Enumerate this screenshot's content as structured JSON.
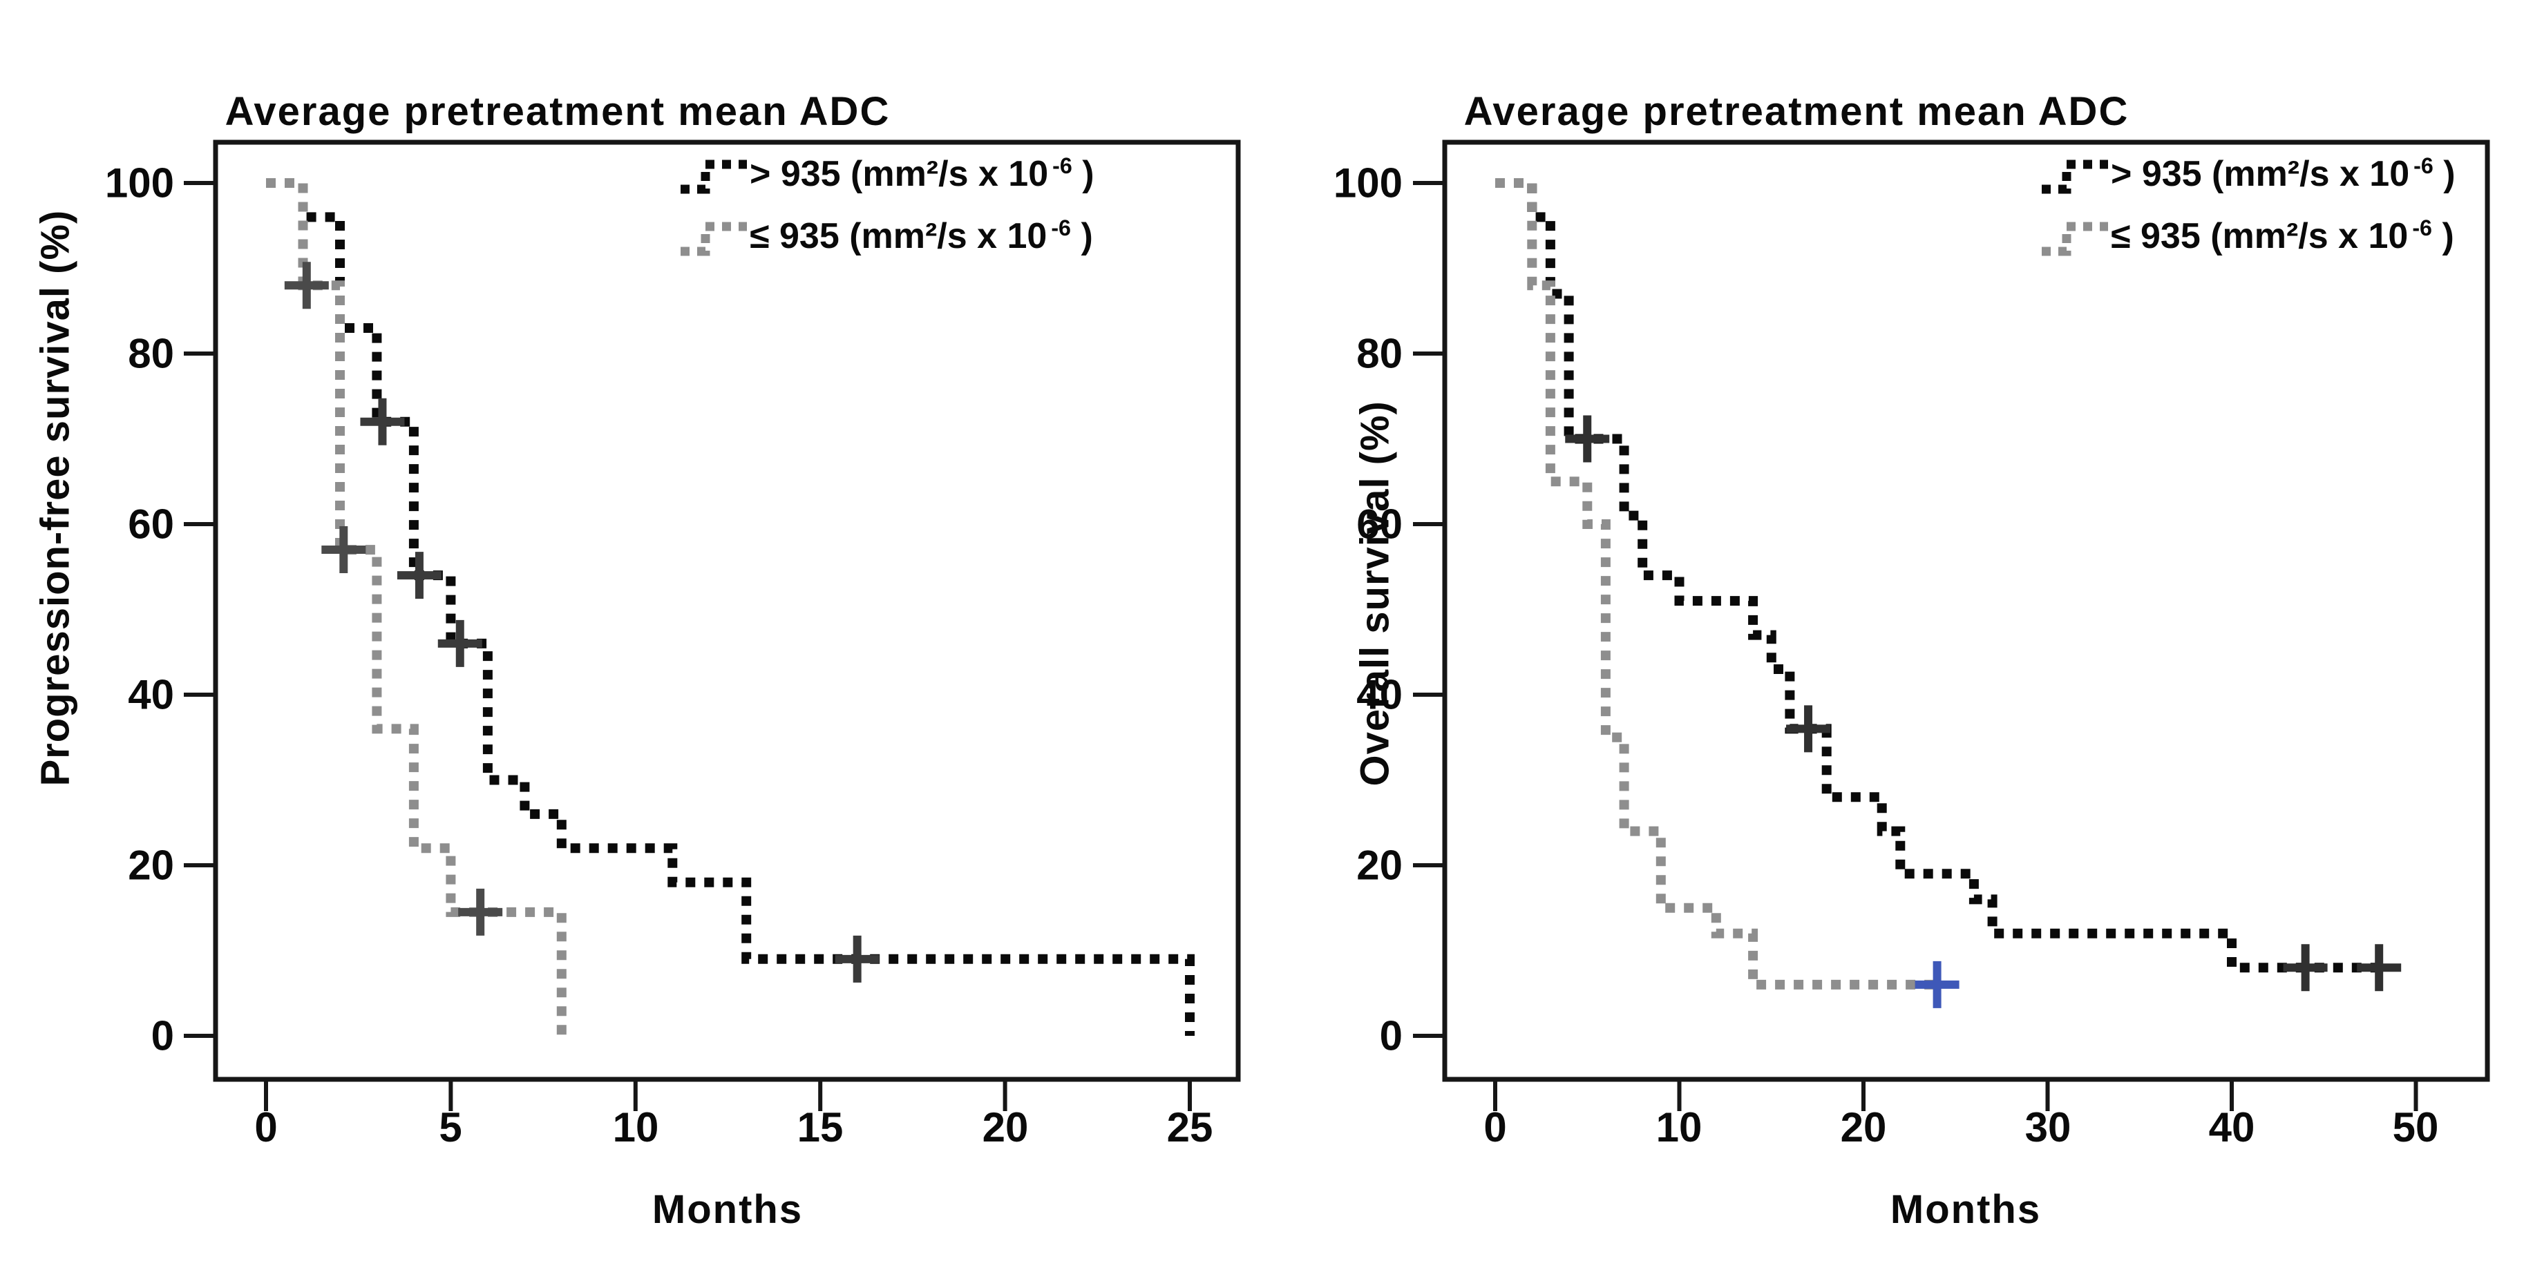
{
  "figure": {
    "background": "#ffffff",
    "frame_color": "#161616",
    "series_colors": {
      "gt935": "#0a0a0a",
      "le935": "#8e8e8e"
    },
    "special_censor_color": "#3e58b8"
  },
  "chart_data": [
    {
      "type": "line",
      "subtype": "kaplan_meier_step",
      "title": "Average pretreatment mean ADC",
      "xlabel": "Months",
      "ylabel": "Progression-free survival (%)",
      "xticks": [
        0,
        5,
        10,
        15,
        20,
        25
      ],
      "yticks": [
        0,
        20,
        40,
        60,
        80,
        100
      ],
      "xlim": [
        0,
        26.5
      ],
      "ylim": [
        0,
        100
      ],
      "grid": false,
      "legend_position": "top-right-inside",
      "legend": [
        {
          "prefix": "> 935 (mm²/s x 10",
          "sup": "-6",
          "suffix": " )"
        },
        {
          "prefix": "≤ 935 (mm²/s x 10",
          "sup": "-6",
          "suffix": " )"
        }
      ],
      "series": [
        {
          "name": "ADC > 935",
          "color": "#0a0a0a",
          "start": [
            0,
            100
          ],
          "steps": [
            [
              1,
              96
            ],
            [
              2,
              83
            ],
            [
              3,
              72
            ],
            [
              4,
              54
            ],
            [
              5,
              46
            ],
            [
              6,
              30
            ],
            [
              7,
              26
            ],
            [
              8,
              22
            ],
            [
              11,
              18
            ],
            [
              13,
              9
            ],
            [
              25,
              0
            ]
          ],
          "end": 25,
          "censor_color": "#3a3a3a",
          "censors": [
            {
              "x": 3.15,
              "y": 72
            },
            {
              "x": 4.15,
              "y": 54
            },
            {
              "x": 5.25,
              "y": 46
            },
            {
              "x": 16,
              "y": 9
            }
          ]
        },
        {
          "name": "ADC ≤ 935",
          "color": "#8e8e8e",
          "start": [
            0,
            100
          ],
          "steps": [
            [
              1,
              88
            ],
            [
              2,
              57
            ],
            [
              3,
              36
            ],
            [
              4,
              22
            ],
            [
              5,
              14.5
            ],
            [
              8,
              0
            ]
          ],
          "end": 8,
          "censor_color": "#4a4a4a",
          "censors": [
            {
              "x": 1.1,
              "y": 88
            },
            {
              "x": 2.1,
              "y": 57
            },
            {
              "x": 5.8,
              "y": 14.5
            }
          ]
        }
      ]
    },
    {
      "type": "line",
      "subtype": "kaplan_meier_step",
      "title": "Average pretreatment mean ADC",
      "xlabel": "Months",
      "ylabel": "Overall survival (%)",
      "xticks": [
        0,
        10,
        20,
        30,
        40,
        50
      ],
      "yticks": [
        0,
        20,
        40,
        60,
        80,
        100
      ],
      "xlim": [
        0,
        53
      ],
      "ylim": [
        0,
        100
      ],
      "grid": false,
      "legend_position": "top-right-inside",
      "legend": [
        {
          "prefix": "> 935 (mm²/s x 10",
          "sup": "-6",
          "suffix": " )"
        },
        {
          "prefix": "≤ 935 (mm²/s x 10",
          "sup": "-6",
          "suffix": " )"
        }
      ],
      "series": [
        {
          "name": "ADC > 935",
          "color": "#0a0a0a",
          "start": [
            0,
            100
          ],
          "steps": [
            [
              2,
              96
            ],
            [
              3,
              87
            ],
            [
              4,
              70
            ],
            [
              7,
              61
            ],
            [
              8,
              54
            ],
            [
              10,
              51
            ],
            [
              14,
              47
            ],
            [
              15,
              43
            ],
            [
              16,
              36
            ],
            [
              18,
              28
            ],
            [
              21,
              24
            ],
            [
              22,
              19
            ],
            [
              26,
              16
            ],
            [
              27,
              12
            ],
            [
              40,
              8
            ]
          ],
          "end": 48,
          "censor_color": "#303030",
          "censors": [
            {
              "x": 5,
              "y": 70
            },
            {
              "x": 17,
              "y": 36
            },
            {
              "x": 44,
              "y": 8
            },
            {
              "x": 48,
              "y": 8
            }
          ]
        },
        {
          "name": "ADC ≤ 935",
          "color": "#8e8e8e",
          "start": [
            0,
            100
          ],
          "steps": [
            [
              2,
              88
            ],
            [
              3,
              65
            ],
            [
              5,
              60
            ],
            [
              6,
              35
            ],
            [
              7,
              24
            ],
            [
              9,
              15
            ],
            [
              12,
              12
            ],
            [
              14,
              6
            ]
          ],
          "end": 24,
          "censor_color": "#4a4a4a",
          "censors": [
            {
              "x": 24,
              "y": 6,
              "color": "#3e58b8"
            }
          ]
        }
      ]
    }
  ]
}
